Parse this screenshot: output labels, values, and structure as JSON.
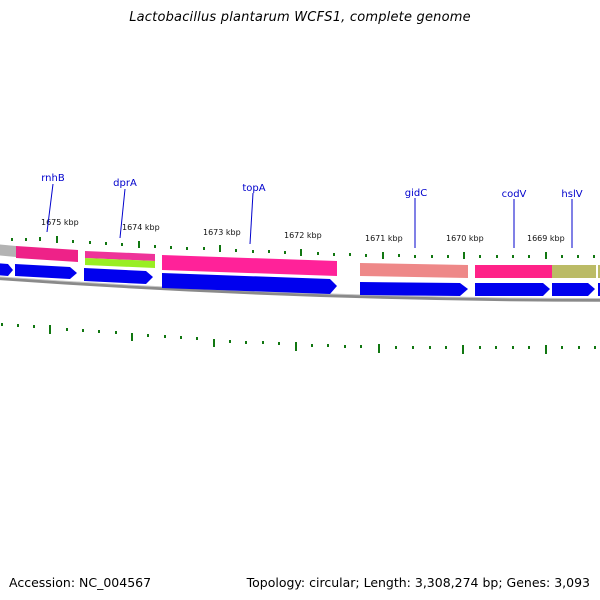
{
  "title": "Lactobacillus plantarum WCFS1, complete genome",
  "accession_text": "Accession: NC_004567",
  "topology_text": "Topology: circular; Length: 3,308,274 bp; Genes: 3,093",
  "colors": {
    "backbone": "#8a8a8a",
    "gene_label": "#0000cc",
    "tick": "#117711",
    "cds_arrow": "#0000ee"
  },
  "map": {
    "kbp_labels": [
      "1675 kbp",
      "1674 kbp",
      "1673 kbp",
      "1672 kbp",
      "1671 kbp",
      "1670 kbp",
      "1669 kbp"
    ],
    "gene_labels": [
      "rnhB",
      "dprA",
      "topA",
      "gidC",
      "codV",
      "hslV"
    ]
  }
}
